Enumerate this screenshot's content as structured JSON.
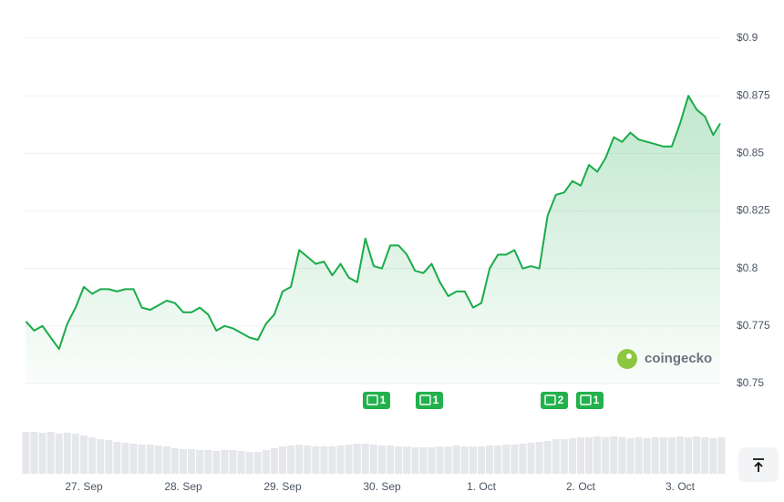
{
  "chart_data": {
    "type": "line",
    "categories": [
      null,
      null,
      null,
      null,
      null,
      null,
      null,
      "27. Sep",
      null,
      null,
      null,
      null,
      null,
      null,
      null,
      null,
      null,
      null,
      null,
      "28. Sep",
      null,
      null,
      null,
      null,
      null,
      null,
      null,
      null,
      null,
      null,
      null,
      "29. Sep",
      null,
      null,
      null,
      null,
      null,
      null,
      null,
      null,
      null,
      null,
      null,
      "30. Sep",
      null,
      null,
      null,
      null,
      null,
      null,
      null,
      null,
      null,
      null,
      null,
      "1. Oct",
      null,
      null,
      null,
      null,
      null,
      null,
      null,
      null,
      null,
      null,
      null,
      "2. Oct",
      null,
      null,
      null,
      null,
      null,
      null,
      null,
      null,
      null,
      null,
      null,
      "3. Oct",
      null,
      null,
      null,
      null,
      null
    ],
    "series": [
      {
        "color": "#1bab4a",
        "values": [
          0.777,
          0.773,
          0.775,
          0.77,
          0.765,
          0.776,
          0.783,
          0.792,
          0.789,
          0.791,
          0.791,
          0.79,
          0.791,
          0.791,
          0.783,
          0.782,
          0.784,
          0.786,
          0.785,
          0.781,
          0.781,
          0.783,
          0.78,
          0.773,
          0.775,
          0.774,
          0.772,
          0.77,
          0.769,
          0.776,
          0.78,
          0.79,
          0.792,
          0.808,
          0.805,
          0.802,
          0.803,
          0.797,
          0.802,
          0.796,
          0.794,
          0.813,
          0.801,
          0.8,
          0.81,
          0.81,
          0.806,
          0.799,
          0.798,
          0.802,
          0.794,
          0.788,
          0.79,
          0.79,
          0.783,
          0.785,
          0.8,
          0.806,
          0.806,
          0.808,
          0.8,
          0.801,
          0.8,
          0.823,
          0.832,
          0.833,
          0.838,
          0.836,
          0.845,
          0.842,
          0.848,
          0.857,
          0.855,
          0.859,
          0.856,
          0.855,
          0.854,
          0.853,
          0.853,
          0.863,
          0.875,
          0.869,
          0.866,
          0.858,
          0.863
        ]
      }
    ],
    "volume": {
      "color": "#e5e7eb",
      "values": [
        46,
        46,
        45,
        46,
        44,
        45,
        44,
        42,
        40,
        38,
        37,
        35,
        34,
        33,
        32,
        32,
        31,
        30,
        28,
        27,
        27,
        26,
        26,
        25,
        26,
        26,
        25,
        24,
        24,
        26,
        28,
        30,
        31,
        32,
        31,
        30,
        30,
        30,
        31,
        32,
        33,
        33,
        32,
        31,
        31,
        30,
        30,
        29,
        29,
        29,
        30,
        30,
        31,
        30,
        30,
        30,
        31,
        31,
        32,
        32,
        33,
        34,
        35,
        36,
        38,
        38,
        39,
        40,
        40,
        41,
        40,
        41,
        40,
        39,
        40,
        39,
        40,
        40,
        40,
        41,
        40,
        41,
        40,
        39,
        40
      ]
    },
    "ylim": [
      0.75,
      0.9
    ],
    "yticks": [
      {
        "value": 0.75,
        "label": "$0.75"
      },
      {
        "value": 0.775,
        "label": "$0.775"
      },
      {
        "value": 0.8,
        "label": "$0.8"
      },
      {
        "value": 0.825,
        "label": "$0.825"
      },
      {
        "value": 0.85,
        "label": "$0.85"
      },
      {
        "value": 0.875,
        "label": "$0.875"
      },
      {
        "value": 0.9,
        "label": "$0.9"
      }
    ],
    "grid": true,
    "events": [
      {
        "label": "1"
      },
      {
        "label": "1"
      },
      {
        "label": "2"
      },
      {
        "label": "1"
      }
    ],
    "watermark": "coingecko"
  }
}
